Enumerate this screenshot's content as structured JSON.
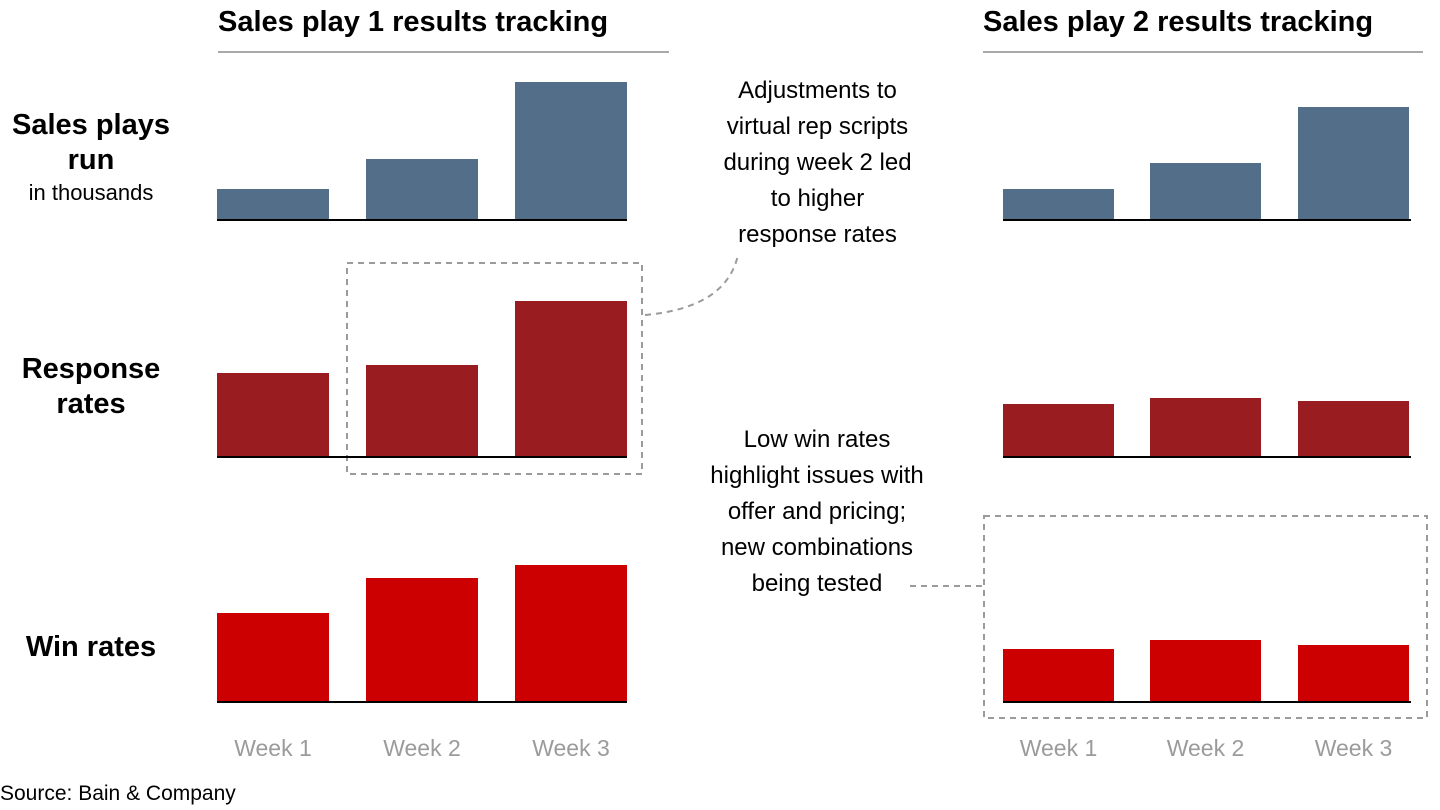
{
  "chart_data": [
    {
      "type": "bar",
      "title": "Sales play 1 results tracking",
      "categories": [
        "Week 1",
        "Week 2",
        "Week 3"
      ],
      "rows": [
        {
          "label": "Sales plays run",
          "sublabel": "in thousands",
          "values": [
            30,
            60,
            137
          ],
          "color": "#526e88"
        },
        {
          "label": "Response rates",
          "sublabel": "",
          "values": [
            83,
            91,
            155
          ],
          "color": "#981c20"
        },
        {
          "label": "Win rates",
          "sublabel": "",
          "values": [
            88,
            123,
            136
          ],
          "color": "#cc0000"
        }
      ]
    },
    {
      "type": "bar",
      "title": "Sales play 2 results tracking",
      "categories": [
        "Week 1",
        "Week 2",
        "Week 3"
      ],
      "rows": [
        {
          "label": "Sales plays run",
          "sublabel": "in thousands",
          "values": [
            30,
            56,
            112
          ],
          "color": "#526e88"
        },
        {
          "label": "Response rates",
          "sublabel": "",
          "values": [
            52,
            58,
            55
          ],
          "color": "#981c20"
        },
        {
          "label": "Win rates",
          "sublabel": "",
          "values": [
            52,
            61,
            56
          ],
          "color": "#cc0000"
        }
      ]
    }
  ],
  "annotations": {
    "play1_note": "Adjustments to virtual rep scripts during week 2 led to higher response rates",
    "play1_note_lines": [
      "Adjustments to",
      "virtual rep scripts",
      "during week 2 led",
      "to higher",
      "response rates"
    ],
    "play2_note": "Low win rates highlight issues with offer and pricing; new combinations being tested",
    "play2_note_lines": [
      "Low win rates",
      "highlight issues with",
      "offer and pricing;",
      "new combinations",
      "being tested"
    ]
  },
  "row_labels": [
    {
      "main": "Sales plays run",
      "sub": "in thousands"
    },
    {
      "main": "Response rates",
      "sub": ""
    },
    {
      "main": "Win rates",
      "sub": ""
    }
  ],
  "source": "Source: Bain & Company",
  "colors": {
    "axis": "#000000",
    "title_rule": "#a9a9a9",
    "tick_label": "#9b9b9b",
    "dashed_box": "#9b9b9b"
  }
}
